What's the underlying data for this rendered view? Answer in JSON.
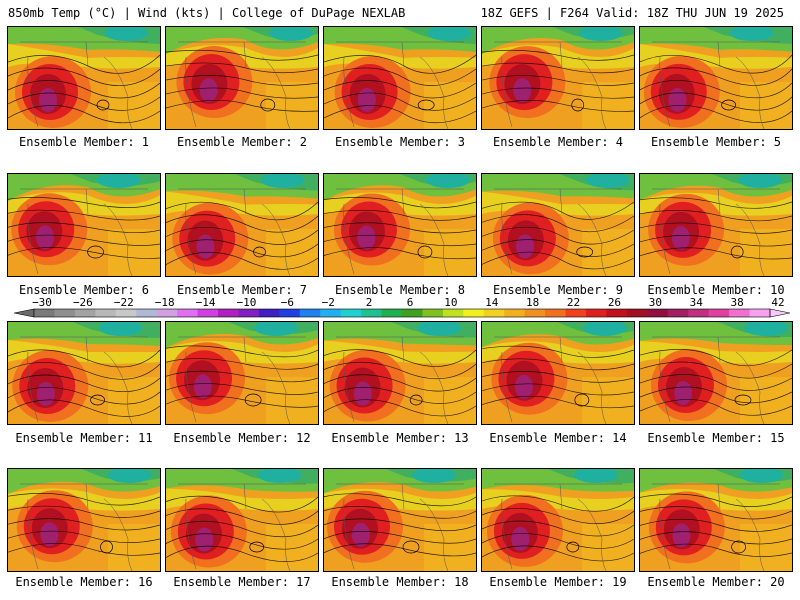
{
  "header": {
    "left_title": "850mb Temp (°C) | Wind (kts) | College of DuPage NEXLAB",
    "right_title": "18Z GEFS | F264 Valid: 18Z THU JUN 19 2025"
  },
  "panels": [
    {
      "label": "Ensemble Member: 1"
    },
    {
      "label": "Ensemble Member: 2"
    },
    {
      "label": "Ensemble Member: 3"
    },
    {
      "label": "Ensemble Member: 4"
    },
    {
      "label": "Ensemble Member: 5"
    },
    {
      "label": "Ensemble Member: 6"
    },
    {
      "label": "Ensemble Member: 7"
    },
    {
      "label": "Ensemble Member: 8"
    },
    {
      "label": "Ensemble Member: 9"
    },
    {
      "label": "Ensemble Member: 10"
    },
    {
      "label": "Ensemble Member: 11"
    },
    {
      "label": "Ensemble Member: 12"
    },
    {
      "label": "Ensemble Member: 13"
    },
    {
      "label": "Ensemble Member: 14"
    },
    {
      "label": "Ensemble Member: 15"
    },
    {
      "label": "Ensemble Member: 16"
    },
    {
      "label": "Ensemble Member: 17"
    },
    {
      "label": "Ensemble Member: 18"
    },
    {
      "label": "Ensemble Member: 19"
    },
    {
      "label": "Ensemble Member: 20"
    }
  ],
  "colorbar": {
    "ticks": [
      "-30",
      "-26",
      "-22",
      "-18",
      "-14",
      "-10",
      "-6",
      "-2",
      "2",
      "6",
      "10",
      "14",
      "18",
      "22",
      "26",
      "30",
      "34",
      "38",
      "42"
    ],
    "colors": [
      "#7a7a7a",
      "#8f8f8f",
      "#a3a3a3",
      "#b8b8b8",
      "#c8c8c8",
      "#b0b8d8",
      "#d0a0e0",
      "#e070f0",
      "#d040e0",
      "#b020c0",
      "#8020c0",
      "#4020c0",
      "#2040e0",
      "#2080f0",
      "#20b0f0",
      "#20d0d0",
      "#20c090",
      "#20b050",
      "#40a020",
      "#80c020",
      "#c0e020",
      "#f0f020",
      "#f0d020",
      "#f0b020",
      "#f09020",
      "#f07020",
      "#f04020",
      "#e02020",
      "#c01020",
      "#a01020",
      "#901040",
      "#a02060",
      "#c03080",
      "#e040a0",
      "#f070d0",
      "#f8a0f0"
    ]
  }
}
